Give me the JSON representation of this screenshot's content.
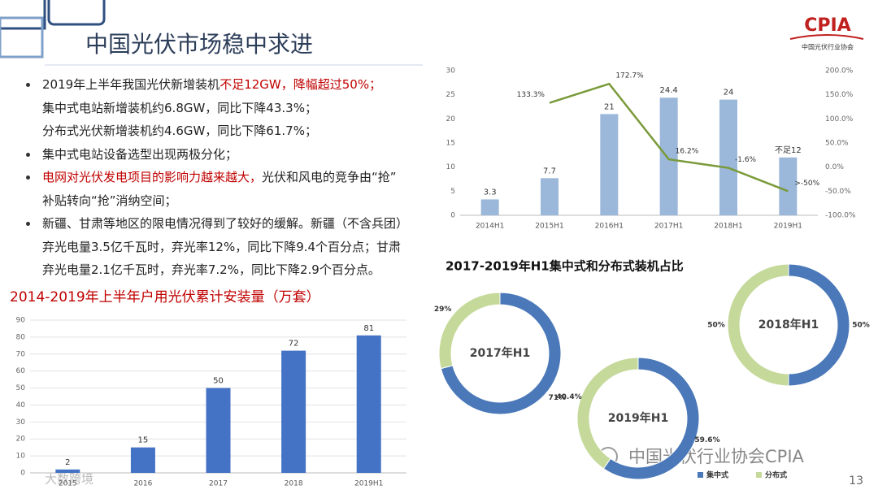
{
  "title": "中国光伏市场稳中求进",
  "logo": {
    "name": "CPIA",
    "subtitle": "中国光伏行业协会"
  },
  "bullets": [
    {
      "lines": [
        [
          {
            "text": "2019年上半年我国光伏新增装机",
            "color": "#222222"
          },
          {
            "text": "不足12GW，降幅超过50%；",
            "color": "#c00000"
          }
        ],
        [
          {
            "text": "集中式电站新增装机约6.8GW，同比下降43.3%；",
            "color": "#222222"
          }
        ],
        [
          {
            "text": "分布式光伏新增装机约4.6GW，同比下降61.7%；",
            "color": "#222222"
          }
        ]
      ]
    },
    {
      "lines": [
        [
          {
            "text": "集中式电站设备选型出现两极分化；",
            "color": "#222222"
          }
        ]
      ]
    },
    {
      "lines": [
        [
          {
            "text": "电网对光伏发电项目的影响力越来越大，",
            "color": "#c00000"
          },
          {
            "text": "光伏和风电的竞争由“抢”",
            "color": "#222222"
          }
        ],
        [
          {
            "text": "补贴转向“抢”消纳空间；",
            "color": "#222222"
          }
        ]
      ]
    },
    {
      "lines": [
        [
          {
            "text": "新疆、甘肃等地区的限电情况得到了较好的缓解。新疆（不含兵团）",
            "color": "#222222"
          }
        ],
        [
          {
            "text": "弃光电量3.5亿千瓦时，弃光率12%，同比下降9.4个百分点；甘肃",
            "color": "#222222"
          }
        ],
        [
          {
            "text": "弃光电量2.1亿千瓦时，弃光率7.2%，同比下降2.9个百分点。",
            "color": "#222222"
          }
        ]
      ]
    }
  ],
  "donut_panel": {
    "title": "2017-2019年H1集中式和分布式装机占比",
    "legend": [
      {
        "name": "集中式",
        "color": "#4a78b8"
      },
      {
        "name": "分布式",
        "color": "#c5d99a"
      }
    ]
  },
  "chart_data": [
    {
      "type": "bar",
      "categories": [
        "2014H1",
        "2015H1",
        "2016H1",
        "2017H1",
        "2018H1",
        "2019H1"
      ],
      "series": [
        {
          "type": "bar",
          "color": "#9bb7d9",
          "values": [
            3.3,
            7.7,
            21,
            24.4,
            24,
            12
          ],
          "value_labels": [
            "3.3",
            "7.7",
            "21",
            "24.4",
            "24",
            "不足12"
          ]
        },
        {
          "type": "line",
          "axis": "y2",
          "color": "#7a9a3a",
          "values": [
            null,
            133.3,
            172.7,
            16.2,
            -1.6,
            -50
          ],
          "value_labels": [
            null,
            "133.3%",
            "172.7%",
            "16.2%",
            "-1.6%",
            ">-50%"
          ]
        }
      ],
      "ylim": [
        0,
        30
      ],
      "yticks": [
        0,
        5,
        10,
        15,
        20,
        25,
        30
      ],
      "y2lim": [
        -100,
        200
      ],
      "y2ticks": [
        {
          "value": -100,
          "label": "-100.0%"
        },
        {
          "value": -50,
          "label": "-50.0%"
        },
        {
          "value": 0,
          "label": "0.0%"
        },
        {
          "value": 50,
          "label": "50.0%"
        },
        {
          "value": 100,
          "label": "100.0%"
        },
        {
          "value": 150,
          "label": "150.0%"
        },
        {
          "value": 200,
          "label": "200.0%"
        }
      ],
      "grid": false
    },
    {
      "type": "bar",
      "title": "2014-2019年上半年户用光伏累计安装量（万套）",
      "categories": [
        "2015",
        "2016",
        "2017",
        "2018",
        "2019H1"
      ],
      "series": [
        {
          "type": "bar",
          "color": "#4472c4",
          "values": [
            2,
            15,
            50,
            72,
            81
          ]
        }
      ],
      "ylim": [
        0,
        90
      ],
      "yticks": [
        0,
        10,
        20,
        30,
        40,
        50,
        60,
        70,
        80,
        90
      ],
      "grid": true
    },
    {
      "type": "donut",
      "title": "2017年H1",
      "values": [
        71,
        29
      ],
      "value_labels": [
        "71%",
        "29%"
      ]
    },
    {
      "type": "donut",
      "title": "2018年H1",
      "values": [
        50,
        50
      ],
      "value_labels": [
        "50%",
        "50%"
      ]
    },
    {
      "type": "donut",
      "title": "2019年H1",
      "values": [
        59.6,
        40.4
      ],
      "value_labels": [
        "59.6%",
        "40.4%"
      ]
    }
  ],
  "watermark": "中国光伏行业协会CPIA",
  "source_mark": "大数跨境",
  "page_number": "13"
}
